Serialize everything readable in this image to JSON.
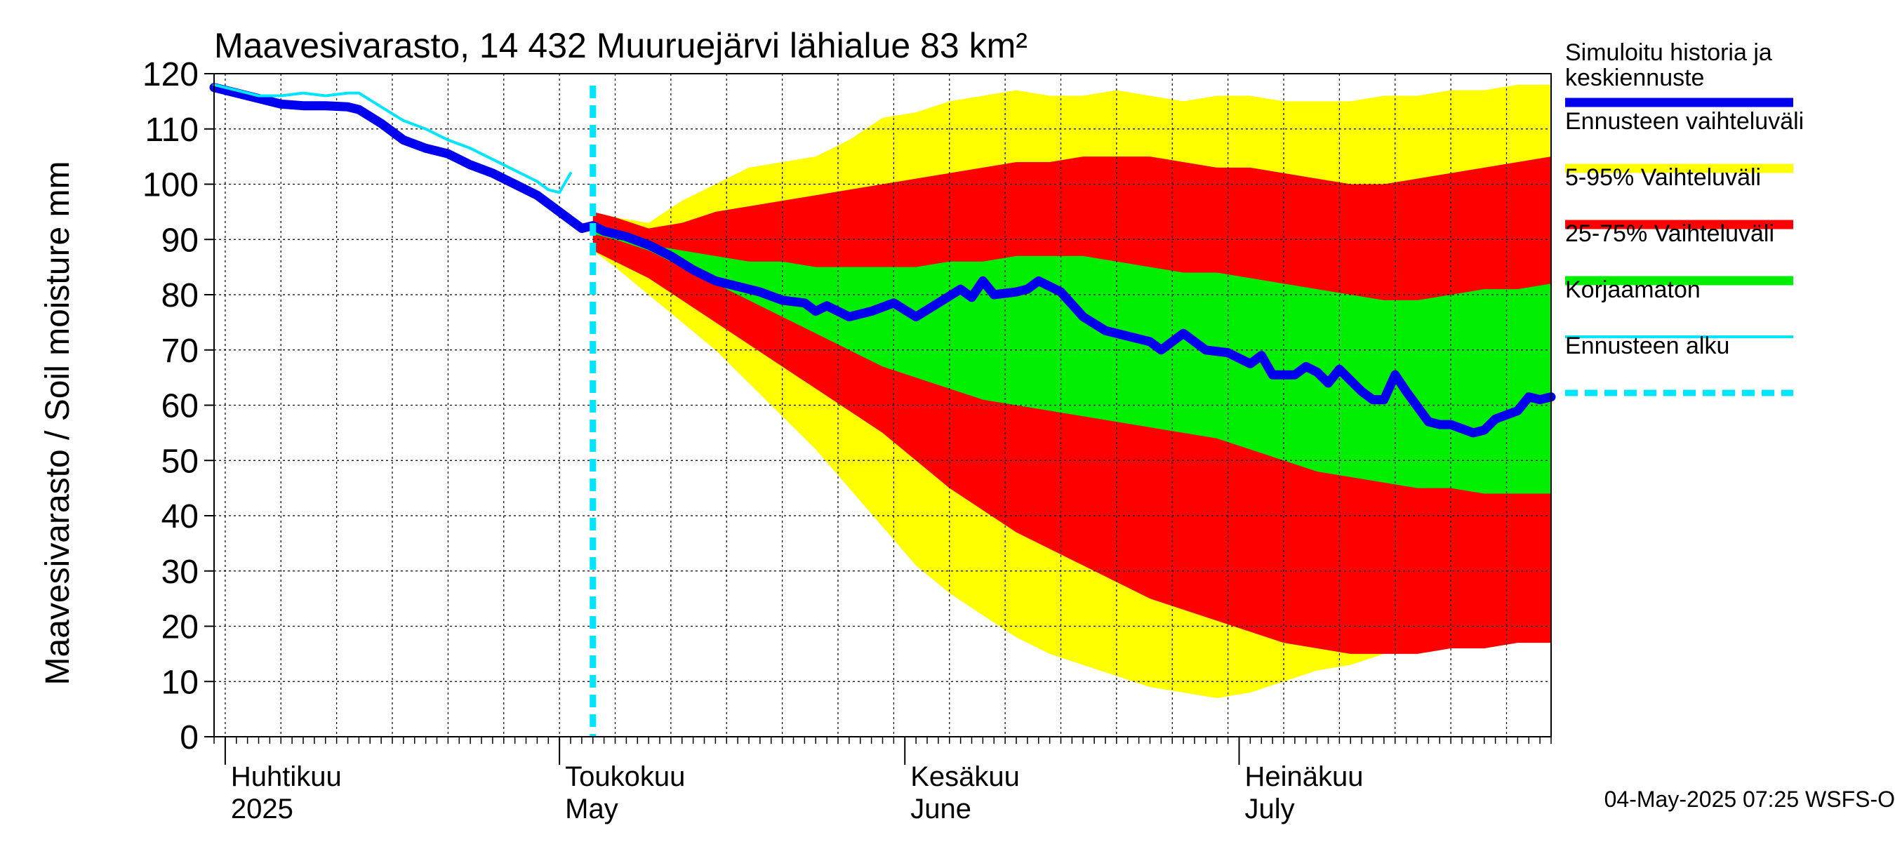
{
  "colors": {
    "band_outer": "#ffff00",
    "band_5_95": "#ff0000",
    "band_25_75": "#00ee00",
    "median": "#0000ee",
    "uncorrected": "#00e5ff",
    "forecast_start": "#00e5ff",
    "grid": "#000000",
    "background": "#ffffff"
  },
  "chart_data": {
    "type": "area",
    "title": "Maavesivarasto, 14 432 Muuruejärvi lähialue 83 km²",
    "ylabel": "Maavesivarasto / Soil moisture   mm",
    "xlabel": "",
    "ylim": [
      0,
      120
    ],
    "yticks": [
      0,
      10,
      20,
      30,
      40,
      50,
      60,
      70,
      80,
      90,
      100,
      110,
      120
    ],
    "xlim": [
      "2025-03-31",
      "2025-07-29"
    ],
    "grid": true,
    "legend_position": "right",
    "month_labels": [
      {
        "date": "2025-04-01",
        "fi": "Huhtikuu",
        "en": "2025"
      },
      {
        "date": "2025-05-01",
        "fi": "Toukokuu",
        "en": "May"
      },
      {
        "date": "2025-06-01",
        "fi": "Kesäkuu",
        "en": "June"
      },
      {
        "date": "2025-07-01",
        "fi": "Heinäkuu",
        "en": "July"
      }
    ],
    "forecast_start": "2025-05-04",
    "legend": [
      {
        "key": "median",
        "label": "Simuloitu historia ja keskiennuste",
        "lines": [
          "Simuloitu historia ja",
          "keskiennuste"
        ],
        "style": "thick"
      },
      {
        "key": "band_outer",
        "label": "Ennusteen vaihteluväli",
        "lines": [
          "Ennusteen vaihteluväli"
        ],
        "style": "thick"
      },
      {
        "key": "band_5_95",
        "label": "5-95% Vaihteluväli",
        "lines": [
          "5-95% Vaihteluväli"
        ],
        "style": "thick"
      },
      {
        "key": "band_25_75",
        "label": "25-75% Vaihteluväli",
        "lines": [
          "25-75% Vaihteluväli"
        ],
        "style": "thick"
      },
      {
        "key": "uncorrected",
        "label": "Korjaamaton",
        "lines": [
          "Korjaamaton"
        ],
        "style": "thin"
      },
      {
        "key": "forecast_start",
        "label": "Ennusteen alku",
        "lines": [
          "Ennusteen alku"
        ],
        "style": "dashed"
      }
    ],
    "series": [
      {
        "key": "median",
        "name": "Simuloitu historia ja keskiennuste",
        "points": [
          [
            "2025-03-31",
            117.5
          ],
          [
            "2025-04-02",
            116.5
          ],
          [
            "2025-04-04",
            115.5
          ],
          [
            "2025-04-06",
            114.5
          ],
          [
            "2025-04-08",
            114.2
          ],
          [
            "2025-04-10",
            114.2
          ],
          [
            "2025-04-12",
            114.0
          ],
          [
            "2025-04-13",
            113.5
          ],
          [
            "2025-04-15",
            111.0
          ],
          [
            "2025-04-17",
            108.0
          ],
          [
            "2025-04-19",
            106.5
          ],
          [
            "2025-04-21",
            105.5
          ],
          [
            "2025-04-23",
            103.5
          ],
          [
            "2025-04-25",
            102.0
          ],
          [
            "2025-04-27",
            100.0
          ],
          [
            "2025-04-29",
            98.0
          ],
          [
            "2025-05-01",
            95.0
          ],
          [
            "2025-05-02",
            93.5
          ],
          [
            "2025-05-03",
            92.0
          ],
          [
            "2025-05-04",
            92.5
          ],
          [
            "2025-05-05",
            91.5
          ],
          [
            "2025-05-07",
            90.5
          ],
          [
            "2025-05-09",
            89.0
          ],
          [
            "2025-05-11",
            87.0
          ],
          [
            "2025-05-13",
            84.5
          ],
          [
            "2025-05-15",
            82.5
          ],
          [
            "2025-05-17",
            81.5
          ],
          [
            "2025-05-19",
            80.5
          ],
          [
            "2025-05-21",
            79.0
          ],
          [
            "2025-05-23",
            78.5
          ],
          [
            "2025-05-24",
            77.0
          ],
          [
            "2025-05-25",
            78.0
          ],
          [
            "2025-05-27",
            76.0
          ],
          [
            "2025-05-29",
            77.0
          ],
          [
            "2025-05-31",
            78.5
          ],
          [
            "2025-06-02",
            76.0
          ],
          [
            "2025-06-04",
            78.5
          ],
          [
            "2025-06-06",
            81.0
          ],
          [
            "2025-06-07",
            79.5
          ],
          [
            "2025-06-08",
            82.5
          ],
          [
            "2025-06-09",
            80.0
          ],
          [
            "2025-06-11",
            80.5
          ],
          [
            "2025-06-12",
            81.0
          ],
          [
            "2025-06-13",
            82.5
          ],
          [
            "2025-06-15",
            80.5
          ],
          [
            "2025-06-17",
            76.0
          ],
          [
            "2025-06-19",
            73.5
          ],
          [
            "2025-06-21",
            72.5
          ],
          [
            "2025-06-23",
            71.5
          ],
          [
            "2025-06-24",
            70.0
          ],
          [
            "2025-06-26",
            73.0
          ],
          [
            "2025-06-28",
            70.0
          ],
          [
            "2025-06-30",
            69.5
          ],
          [
            "2025-07-02",
            67.5
          ],
          [
            "2025-07-03",
            69.0
          ],
          [
            "2025-07-04",
            65.5
          ],
          [
            "2025-07-06",
            65.5
          ],
          [
            "2025-07-07",
            67.0
          ],
          [
            "2025-07-08",
            66.0
          ],
          [
            "2025-07-09",
            64.0
          ],
          [
            "2025-07-10",
            66.5
          ],
          [
            "2025-07-12",
            62.5
          ],
          [
            "2025-07-13",
            61.0
          ],
          [
            "2025-07-14",
            61.0
          ],
          [
            "2025-07-15",
            65.5
          ],
          [
            "2025-07-16",
            62.5
          ],
          [
            "2025-07-18",
            57.0
          ],
          [
            "2025-07-19",
            56.5
          ],
          [
            "2025-07-20",
            56.5
          ],
          [
            "2025-07-22",
            55.0
          ],
          [
            "2025-07-23",
            55.5
          ],
          [
            "2025-07-24",
            57.5
          ],
          [
            "2025-07-26",
            59.0
          ],
          [
            "2025-07-27",
            61.5
          ],
          [
            "2025-07-28",
            61.0
          ],
          [
            "2025-07-29",
            61.5
          ]
        ]
      },
      {
        "key": "uncorrected",
        "name": "Korjaamaton",
        "points": [
          [
            "2025-03-31",
            118.0
          ],
          [
            "2025-04-02",
            117.0
          ],
          [
            "2025-04-04",
            116.0
          ],
          [
            "2025-04-06",
            116.0
          ],
          [
            "2025-04-08",
            116.5
          ],
          [
            "2025-04-10",
            116.0
          ],
          [
            "2025-04-12",
            116.5
          ],
          [
            "2025-04-13",
            116.5
          ],
          [
            "2025-04-15",
            114.0
          ],
          [
            "2025-04-17",
            111.5
          ],
          [
            "2025-04-19",
            110.0
          ],
          [
            "2025-04-21",
            108.0
          ],
          [
            "2025-04-23",
            106.5
          ],
          [
            "2025-04-25",
            104.5
          ],
          [
            "2025-04-27",
            102.5
          ],
          [
            "2025-04-29",
            100.5
          ],
          [
            "2025-04-30",
            99.0
          ],
          [
            "2025-05-01",
            98.5
          ],
          [
            "2025-05-02",
            102.0
          ]
        ]
      }
    ],
    "bands": [
      {
        "key": "band_outer",
        "name": "Ennusteen vaihteluväli",
        "x": [
          "2025-05-04",
          "2025-05-06",
          "2025-05-09",
          "2025-05-12",
          "2025-05-15",
          "2025-05-18",
          "2025-05-21",
          "2025-05-24",
          "2025-05-27",
          "2025-05-30",
          "2025-06-02",
          "2025-06-05",
          "2025-06-08",
          "2025-06-11",
          "2025-06-14",
          "2025-06-17",
          "2025-06-20",
          "2025-06-23",
          "2025-06-26",
          "2025-06-29",
          "2025-07-02",
          "2025-07-05",
          "2025-07-08",
          "2025-07-11",
          "2025-07-14",
          "2025-07-17",
          "2025-07-20",
          "2025-07-23",
          "2025-07-26",
          "2025-07-29"
        ],
        "low": [
          88,
          85,
          80,
          75,
          70,
          64,
          58,
          52,
          45,
          38,
          31,
          26,
          22,
          18,
          15,
          13,
          11,
          9,
          8,
          7,
          8,
          10,
          12,
          13,
          15,
          16,
          17,
          18,
          18,
          19
        ],
        "high": [
          95,
          94,
          93,
          97,
          100,
          103,
          104,
          105,
          108,
          112,
          113,
          115,
          116,
          117,
          116,
          116,
          117,
          116,
          115,
          116,
          116,
          115,
          115,
          115,
          116,
          116,
          117,
          117,
          118,
          118
        ]
      },
      {
        "key": "band_5_95",
        "name": "5-95% Vaihteluväli",
        "x": [
          "2025-05-04",
          "2025-05-06",
          "2025-05-09",
          "2025-05-12",
          "2025-05-15",
          "2025-05-18",
          "2025-05-21",
          "2025-05-24",
          "2025-05-27",
          "2025-05-30",
          "2025-06-02",
          "2025-06-05",
          "2025-06-08",
          "2025-06-11",
          "2025-06-14",
          "2025-06-17",
          "2025-06-20",
          "2025-06-23",
          "2025-06-26",
          "2025-06-29",
          "2025-07-02",
          "2025-07-05",
          "2025-07-08",
          "2025-07-11",
          "2025-07-14",
          "2025-07-17",
          "2025-07-20",
          "2025-07-23",
          "2025-07-26",
          "2025-07-29"
        ],
        "low": [
          88,
          86,
          83,
          79,
          75,
          71,
          67,
          63,
          59,
          55,
          50,
          45,
          41,
          37,
          34,
          31,
          28,
          25,
          23,
          21,
          19,
          17,
          16,
          15,
          15,
          15,
          16,
          16,
          17,
          17
        ],
        "high": [
          95,
          94,
          92,
          93,
          95,
          96,
          97,
          98,
          99,
          100,
          101,
          102,
          103,
          104,
          104,
          105,
          105,
          105,
          104,
          103,
          103,
          102,
          101,
          100,
          100,
          101,
          102,
          103,
          104,
          105
        ]
      },
      {
        "key": "band_25_75",
        "name": "25-75% Vaihteluväli",
        "x": [
          "2025-05-04",
          "2025-05-06",
          "2025-05-09",
          "2025-05-12",
          "2025-05-15",
          "2025-05-18",
          "2025-05-21",
          "2025-05-24",
          "2025-05-27",
          "2025-05-30",
          "2025-06-02",
          "2025-06-05",
          "2025-06-08",
          "2025-06-11",
          "2025-06-14",
          "2025-06-17",
          "2025-06-20",
          "2025-06-23",
          "2025-06-26",
          "2025-06-29",
          "2025-07-02",
          "2025-07-05",
          "2025-07-08",
          "2025-07-11",
          "2025-07-14",
          "2025-07-17",
          "2025-07-20",
          "2025-07-23",
          "2025-07-26",
          "2025-07-29"
        ],
        "low": [
          91,
          90,
          88,
          85,
          82,
          79,
          76,
          73,
          70,
          67,
          65,
          63,
          61,
          60,
          59,
          58,
          57,
          56,
          55,
          54,
          52,
          50,
          48,
          47,
          46,
          45,
          45,
          44,
          44,
          44
        ],
        "high": [
          92,
          91,
          89,
          88,
          87,
          86,
          86,
          85,
          85,
          85,
          85,
          86,
          86,
          87,
          87,
          87,
          86,
          85,
          84,
          84,
          83,
          82,
          81,
          80,
          79,
          79,
          80,
          81,
          81,
          82
        ]
      }
    ]
  },
  "footer": {
    "timestamp": "04-May-2025 07:25 WSFS-O"
  }
}
